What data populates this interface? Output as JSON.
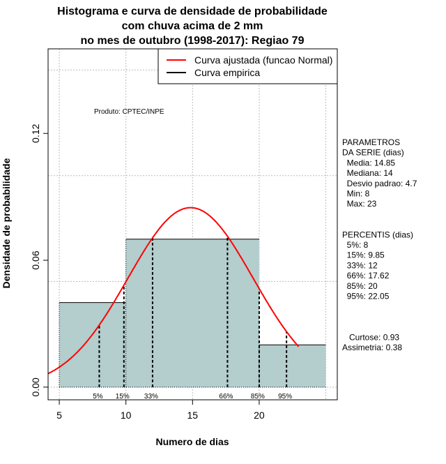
{
  "chart_data": {
    "type": "histogram",
    "title_lines": [
      "Histograma e curva de densidade de probabilidade",
      "com chuva acima de 2 mm",
      "no mes de outubro (1998-2017): Regiao 79"
    ],
    "xlabel": "Numero de dias",
    "ylabel": "Densidade de probabilidade",
    "xlim": [
      4.16,
      25.86
    ],
    "ylim": [
      -0.006,
      0.16
    ],
    "xticks": [
      5,
      10,
      15,
      20
    ],
    "xtick_labels": [
      "5",
      "10",
      "15",
      "20"
    ],
    "yticks": [
      0.0,
      0.06,
      0.12
    ],
    "ytick_labels": [
      "0.00",
      "0.06",
      "0.12"
    ],
    "grid_x": [
      5,
      10,
      15,
      20,
      25
    ],
    "grid_y": [
      0,
      0.05,
      0.1,
      0.15
    ],
    "bins": [
      {
        "from": 5,
        "to": 10,
        "density": 0.04
      },
      {
        "from": 10,
        "to": 20,
        "density": 0.07
      },
      {
        "from": 20,
        "to": 25,
        "density": 0.02
      }
    ],
    "normal_curve": {
      "mean": 14.85,
      "sd": 4.7,
      "x_from": 4.16,
      "x_to": 23
    },
    "percentiles": [
      {
        "label": "5%",
        "value": 8
      },
      {
        "label": "15%",
        "value": 9.85
      },
      {
        "label": "33%",
        "value": 12
      },
      {
        "label": "66%",
        "value": 17.62
      },
      {
        "label": "85%",
        "value": 20
      },
      {
        "label": "95%",
        "value": 22.05
      }
    ],
    "legend": {
      "position": "top-right",
      "entries": [
        {
          "label": "Curva ajustada (funcao Normal)",
          "color": "#ff0000"
        },
        {
          "label": "Curva empirica",
          "color": "#000000"
        }
      ]
    },
    "annotation": "Produto: CPTEC/INPE",
    "bar_color": "#b4cdcd",
    "side_text": [
      "PARAMETROS",
      "DA SERIE (dias)",
      "  Media: 14.85",
      "  Mediana: 14",
      "  Desvio padrao: 4.7",
      "  Min: 8",
      "  Max: 23",
      "",
      "",
      "PERCENTIS (dias)",
      "  5%: 8",
      "  15%: 9.85",
      "  33%: 12",
      "  66%: 17.62",
      "  85%: 20",
      "  95%: 22.05",
      "",
      "",
      "",
      "   Curtose: 0.93",
      "Assimetria: 0.38"
    ]
  }
}
